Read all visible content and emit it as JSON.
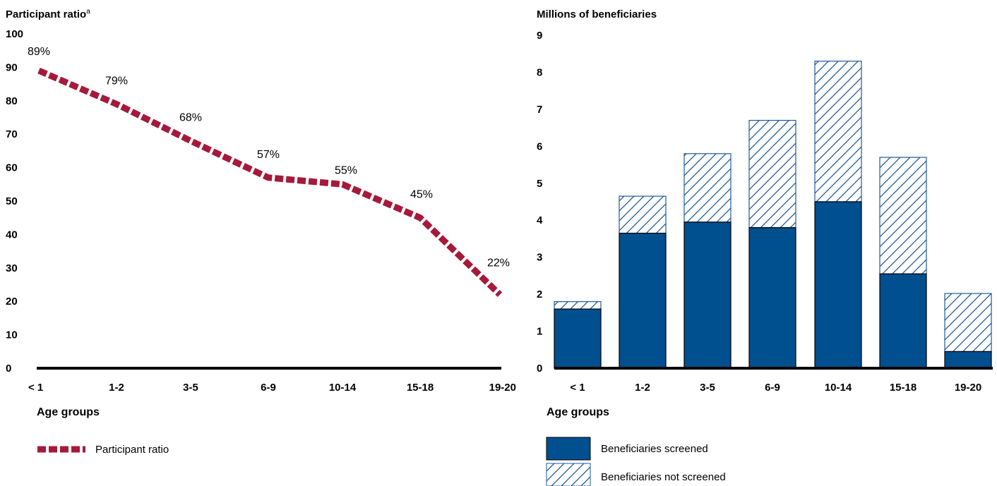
{
  "chart_data": [
    {
      "type": "line",
      "ylabel": "Participant ratio",
      "ylabel_superscript": "a",
      "xlabel": "Age groups",
      "categories": [
        "< 1",
        "1-2",
        "3-5",
        "6-9",
        "10-14",
        "15-18",
        "19-20"
      ],
      "series": [
        {
          "name": "Participant ratio",
          "values": [
            89,
            79,
            68,
            57,
            55,
            45,
            22
          ],
          "color": "#a5193a"
        }
      ],
      "data_labels": [
        "89%",
        "79%",
        "68%",
        "57%",
        "55%",
        "45%",
        "22%"
      ],
      "yticks": [
        "0",
        "10",
        "20",
        "30",
        "40",
        "50",
        "60",
        "70",
        "80",
        "90",
        "100"
      ],
      "ylim": [
        0,
        100
      ],
      "grid": false,
      "legend_position": "bottom-left"
    },
    {
      "type": "bar",
      "stacked": true,
      "ylabel": "Millions of beneficiaries",
      "xlabel": "Age groups",
      "categories": [
        "< 1",
        "1-2",
        "3-5",
        "6-9",
        "10-14",
        "15-18",
        "19-20"
      ],
      "series": [
        {
          "name": "Beneficiaries screened",
          "values": [
            1.6,
            3.65,
            3.95,
            3.8,
            4.5,
            2.55,
            0.45
          ],
          "color": "#004f8f",
          "fill": "solid"
        },
        {
          "name": "Beneficiaries not screened",
          "values": [
            0.2,
            1.0,
            1.85,
            2.9,
            3.8,
            3.15,
            1.57
          ],
          "color": "#1f5a99",
          "fill": "hatched"
        }
      ],
      "yticks": [
        "0",
        "1",
        "2",
        "3",
        "4",
        "5",
        "6",
        "7",
        "8",
        "9"
      ],
      "ylim": [
        0,
        9
      ],
      "grid": false,
      "legend_position": "bottom-left"
    }
  ]
}
